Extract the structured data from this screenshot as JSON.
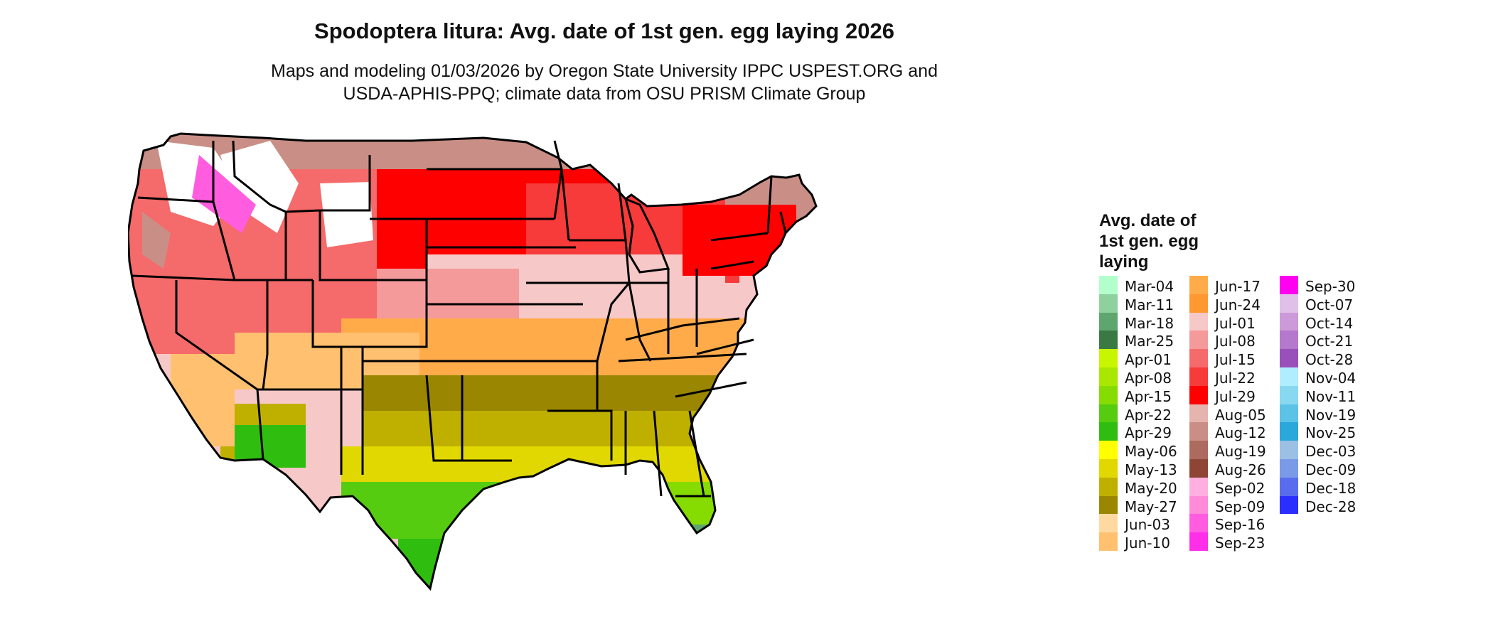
{
  "title": "Spodoptera litura: Avg. date of 1st gen. egg laying 2026",
  "subtitle_line1": "Maps and modeling 01/03/2026 by Oregon State University IPPC USPEST.ORG and",
  "subtitle_line2": "USDA-APHIS-PPQ; climate data from OSU PRISM Climate Group",
  "legend": {
    "title_lines": [
      "Avg. date of",
      "1st gen. egg",
      "laying"
    ],
    "columns": [
      [
        {
          "label": "Mar-04",
          "color": "#b3ffcc"
        },
        {
          "label": "Mar-11",
          "color": "#8fd19e"
        },
        {
          "label": "Mar-18",
          "color": "#5fa66e"
        },
        {
          "label": "Mar-25",
          "color": "#3a7a42"
        },
        {
          "label": "Apr-01",
          "color": "#c8f500"
        },
        {
          "label": "Apr-08",
          "color": "#a8e800"
        },
        {
          "label": "Apr-15",
          "color": "#86dc00"
        },
        {
          "label": "Apr-22",
          "color": "#55cc10"
        },
        {
          "label": "Apr-29",
          "color": "#2fbe10"
        },
        {
          "label": "May-06",
          "color": "#ffff00"
        },
        {
          "label": "May-13",
          "color": "#e0d800"
        },
        {
          "label": "May-20",
          "color": "#bfb000"
        },
        {
          "label": "May-27",
          "color": "#9a8600"
        },
        {
          "label": "Jun-03",
          "color": "#ffd9a0"
        },
        {
          "label": "Jun-10",
          "color": "#ffc070"
        }
      ],
      [
        {
          "label": "Jun-17",
          "color": "#ffab4a"
        },
        {
          "label": "Jun-24",
          "color": "#ff9830"
        },
        {
          "label": "Jul-01",
          "color": "#f6c8c8"
        },
        {
          "label": "Jul-08",
          "color": "#f49a9a"
        },
        {
          "label": "Jul-15",
          "color": "#f56a6a"
        },
        {
          "label": "Jul-22",
          "color": "#f73a3a"
        },
        {
          "label": "Jul-29",
          "color": "#ff0000"
        },
        {
          "label": "Aug-05",
          "color": "#e6b4ae"
        },
        {
          "label": "Aug-12",
          "color": "#c98f86"
        },
        {
          "label": "Aug-19",
          "color": "#ad6a5e"
        },
        {
          "label": "Aug-26",
          "color": "#8e4536"
        },
        {
          "label": "Sep-02",
          "color": "#ffb0e0"
        },
        {
          "label": "Sep-09",
          "color": "#ff8ad8"
        },
        {
          "label": "Sep-16",
          "color": "#ff5ce0"
        },
        {
          "label": "Sep-23",
          "color": "#ff2ee8"
        }
      ],
      [
        {
          "label": "Sep-30",
          "color": "#ff00f0"
        },
        {
          "label": "Oct-07",
          "color": "#e0c0e8"
        },
        {
          "label": "Oct-14",
          "color": "#cc9ad8"
        },
        {
          "label": "Oct-21",
          "color": "#b478cc"
        },
        {
          "label": "Oct-28",
          "color": "#9a50bb"
        },
        {
          "label": "Nov-04",
          "color": "#b0eeff"
        },
        {
          "label": "Nov-11",
          "color": "#88d8f0"
        },
        {
          "label": "Nov-19",
          "color": "#5cc2e6"
        },
        {
          "label": "Nov-25",
          "color": "#2aa8da"
        },
        {
          "label": "Dec-03",
          "color": "#9cc0e4"
        },
        {
          "label": "Dec-09",
          "color": "#7a9ae8"
        },
        {
          "label": "Dec-18",
          "color": "#5a6cee"
        },
        {
          "label": "Dec-28",
          "color": "#2a2eff"
        }
      ]
    ]
  }
}
